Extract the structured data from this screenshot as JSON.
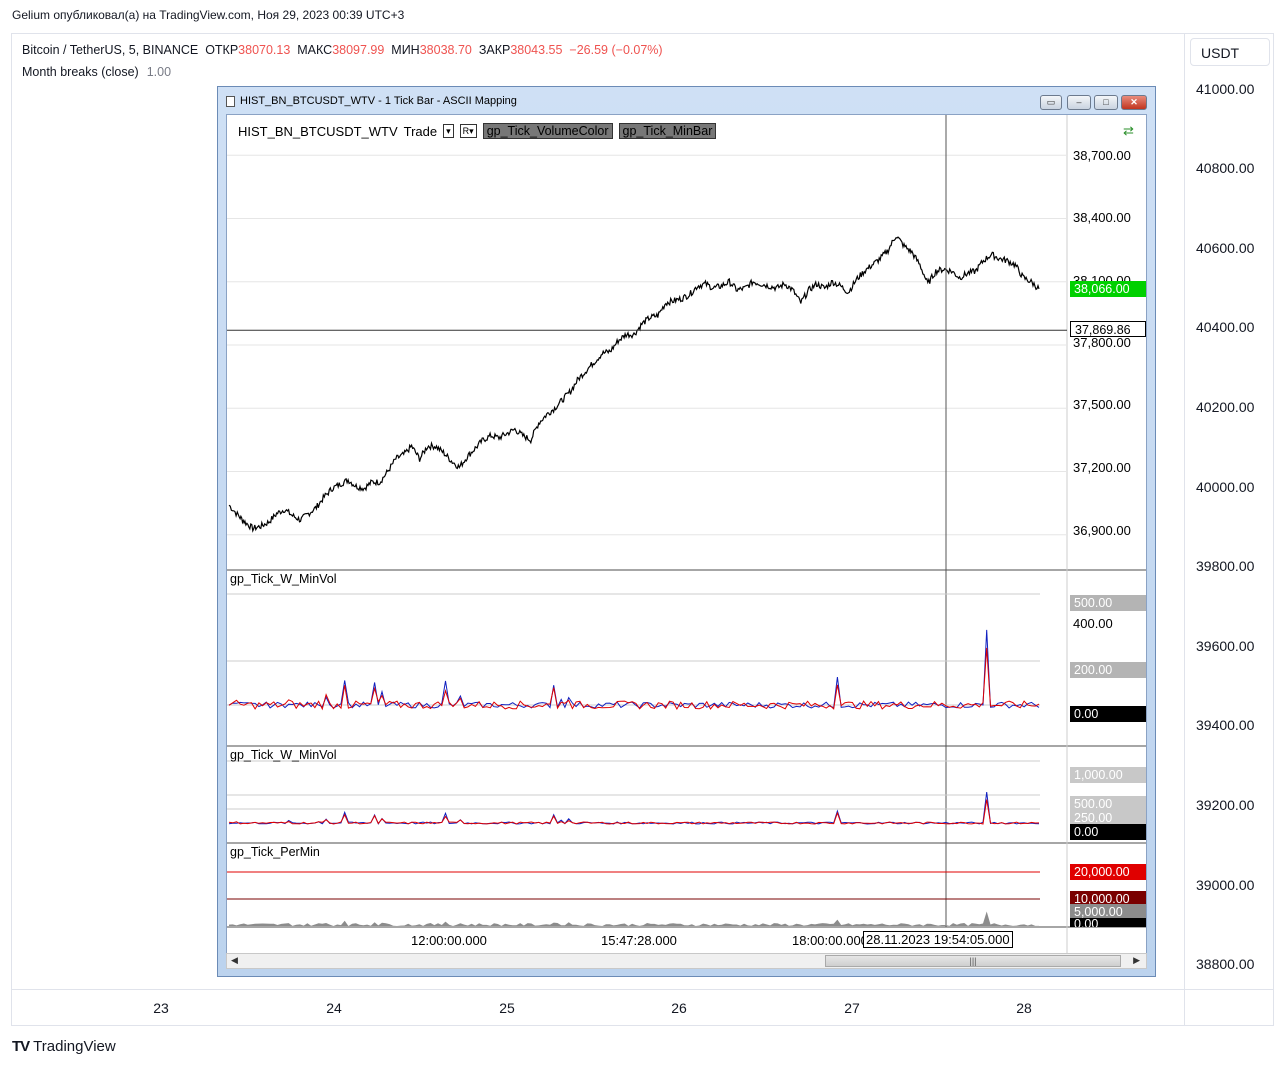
{
  "publication": {
    "line": "Gelium опубликовал(а) на TradingView.com, Ноя 29, 2023 00:39 UTC+3"
  },
  "legend": {
    "symbol": "Bitcoin / TetherUS, 5, BINANCE",
    "open_label": "ОТКР",
    "open": "38070.13",
    "high_label": "МАКС",
    "high": "38097.99",
    "low_label": "МИН",
    "low": "38038.70",
    "close_label": "ЗАКР",
    "close": "38043.55",
    "change": "−26.59 (−0.07%)",
    "indicator_name": "Month breaks (close)",
    "indicator_value": "1.00"
  },
  "currency": "USDT",
  "branding": "TradingView",
  "colors": {
    "accent_red": "#ef5350",
    "win_green": "#00d000",
    "win_red": "#e00000",
    "win_dark_red": "#7a0000",
    "win_grey": "#b4b4b4"
  },
  "chart_data": [
    {
      "type": "line",
      "title": "Bitcoin / TetherUS, 5, BINANCE",
      "y_axis": {
        "ticks": [
          "41000.00",
          "40800.00",
          "40600.00",
          "40400.00",
          "40200.00",
          "40000.00",
          "39800.00",
          "39600.00",
          "39400.00",
          "39200.00",
          "39000.00",
          "38800.00"
        ],
        "ylim": [
          38800,
          41000
        ]
      },
      "x_axis": {
        "ticks": [
          "23",
          "24",
          "25",
          "26",
          "27",
          "28"
        ]
      },
      "series": []
    },
    {
      "type": "line",
      "title": "HIST_BN_BTCUSDT_WTV - 1 Tick Bar - ASCII Mapping",
      "header": {
        "symbol": "HIST_BN_BTCUSDT_WTV",
        "mode": "Trade",
        "dropdown": "▾",
        "range": "R▾",
        "tags": [
          "gp_Tick_VolumeColor",
          "gp_Tick_MinBar"
        ]
      },
      "price_pane": {
        "y_ticks": [
          "38,700.00",
          "38,400.00",
          "38,100.00",
          "37,800.00",
          "37,500.00",
          "37,200.00",
          "36,900.00"
        ],
        "ylim": [
          36780,
          38820
        ],
        "last_price": "38,066.00",
        "crosshair_price": "37,869.86",
        "close_series": [
          [
            0,
            37040
          ],
          [
            6,
            36990
          ],
          [
            10,
            36960
          ],
          [
            15,
            36930
          ],
          [
            20,
            36940
          ],
          [
            25,
            36960
          ],
          [
            30,
            37000
          ],
          [
            35,
            37020
          ],
          [
            40,
            36990
          ],
          [
            45,
            36970
          ],
          [
            50,
            37000
          ],
          [
            55,
            37030
          ],
          [
            60,
            37080
          ],
          [
            65,
            37120
          ],
          [
            70,
            37140
          ],
          [
            75,
            37160
          ],
          [
            80,
            37130
          ],
          [
            85,
            37120
          ],
          [
            90,
            37150
          ],
          [
            95,
            37150
          ],
          [
            100,
            37200
          ],
          [
            105,
            37260
          ],
          [
            110,
            37280
          ],
          [
            115,
            37320
          ],
          [
            120,
            37260
          ],
          [
            125,
            37320
          ],
          [
            130,
            37320
          ],
          [
            135,
            37290
          ],
          [
            140,
            37250
          ],
          [
            145,
            37220
          ],
          [
            150,
            37270
          ],
          [
            155,
            37310
          ],
          [
            160,
            37350
          ],
          [
            165,
            37370
          ],
          [
            170,
            37360
          ],
          [
            175,
            37380
          ],
          [
            180,
            37400
          ],
          [
            185,
            37370
          ],
          [
            190,
            37350
          ],
          [
            195,
            37430
          ],
          [
            200,
            37470
          ],
          [
            205,
            37500
          ],
          [
            210,
            37540
          ],
          [
            215,
            37580
          ],
          [
            220,
            37640
          ],
          [
            225,
            37680
          ],
          [
            230,
            37720
          ],
          [
            235,
            37760
          ],
          [
            240,
            37770
          ],
          [
            245,
            37820
          ],
          [
            250,
            37850
          ],
          [
            255,
            37850
          ],
          [
            260,
            37900
          ],
          [
            265,
            37930
          ],
          [
            270,
            37940
          ],
          [
            275,
            38000
          ],
          [
            280,
            38010
          ],
          [
            285,
            38020
          ],
          [
            290,
            38040
          ],
          [
            295,
            38080
          ],
          [
            300,
            38090
          ],
          [
            305,
            38070
          ],
          [
            310,
            38080
          ],
          [
            315,
            38100
          ],
          [
            320,
            38060
          ],
          [
            325,
            38070
          ],
          [
            330,
            38100
          ],
          [
            335,
            38090
          ],
          [
            340,
            38080
          ],
          [
            345,
            38070
          ],
          [
            350,
            38090
          ],
          [
            355,
            38060
          ],
          [
            360,
            38000
          ],
          [
            365,
            38060
          ],
          [
            370,
            38090
          ],
          [
            375,
            38070
          ],
          [
            380,
            38100
          ],
          [
            385,
            38080
          ],
          [
            390,
            38050
          ],
          [
            395,
            38110
          ],
          [
            400,
            38150
          ],
          [
            405,
            38180
          ],
          [
            410,
            38210
          ],
          [
            415,
            38250
          ],
          [
            420,
            38320
          ],
          [
            425,
            38270
          ],
          [
            430,
            38240
          ],
          [
            435,
            38180
          ],
          [
            440,
            38090
          ],
          [
            445,
            38150
          ],
          [
            450,
            38160
          ],
          [
            455,
            38150
          ],
          [
            460,
            38120
          ],
          [
            465,
            38140
          ],
          [
            470,
            38150
          ],
          [
            475,
            38200
          ],
          [
            480,
            38230
          ],
          [
            485,
            38210
          ],
          [
            490,
            38200
          ],
          [
            495,
            38180
          ],
          [
            500,
            38120
          ],
          [
            505,
            38100
          ],
          [
            510,
            38066
          ]
        ],
        "line_color": "#000000"
      },
      "pane2": {
        "label": "gp_Tick_W_MinVol",
        "y_ticks": [
          "500.00",
          "400.00",
          "200.00",
          "0.00"
        ]
      },
      "pane3": {
        "label": "gp_Tick_W_MinVol",
        "y_ticks": [
          "1,000.00",
          "500.00",
          "250.00",
          "0.00"
        ]
      },
      "pane4": {
        "label": "gp_Tick_PerMin",
        "y_ticks": [
          "20,000.00",
          "10,000.00",
          "5,000.00",
          "0.00"
        ]
      },
      "x_axis": {
        "ticks": [
          "12:00:00.000",
          "15:47:28.000",
          "18:00:00.000"
        ],
        "crosshair_time": "28.11.2023 19:54:05.000"
      },
      "series": [
        {
          "values": [
            0,
            0,
            5,
            0,
            0,
            0,
            0,
            0,
            0,
            0,
            0,
            0,
            0,
            0,
            0,
            0,
            15,
            0,
            0,
            0,
            0,
            0,
            0,
            0,
            10,
            0,
            40,
            0,
            0,
            0,
            0,
            110,
            0,
            0,
            0,
            0,
            0,
            0,
            0,
            80,
            0,
            45,
            0,
            0,
            0,
            0,
            0,
            0,
            0,
            0,
            0,
            0,
            0,
            0,
            0,
            0,
            0,
            0,
            90,
            0,
            0,
            0,
            30,
            0,
            0,
            0,
            0,
            0,
            0,
            0,
            0,
            0,
            0,
            0,
            0,
            0,
            0,
            0,
            0,
            0,
            0,
            0,
            0,
            0,
            0,
            0,
            0,
            80,
            0,
            20,
            0,
            40,
            0,
            0,
            0,
            0,
            0,
            0,
            0,
            0,
            0,
            0,
            0,
            0,
            0,
            0,
            0,
            0,
            0,
            0,
            0,
            0,
            0,
            0,
            0,
            0,
            0,
            0,
            0,
            0,
            0,
            0,
            0,
            0,
            0,
            0,
            0,
            0,
            0,
            0,
            0,
            0,
            0,
            0,
            0,
            0,
            0,
            0,
            0,
            0,
            0,
            0,
            0,
            0,
            0,
            0,
            0,
            0,
            0,
            0,
            0,
            0,
            0,
            0,
            0,
            0,
            0,
            0,
            0,
            0,
            0,
            0,
            0,
            120,
            0,
            0,
            0,
            0,
            0,
            0,
            0,
            0,
            0,
            0,
            0,
            0,
            0,
            0,
            0,
            0,
            0,
            0,
            0,
            0,
            0,
            0,
            0,
            0,
            0,
            0,
            0,
            0,
            0,
            0,
            0,
            0,
            0,
            0,
            0,
            0,
            0,
            0,
            0,
            300,
            0,
            0,
            0,
            0,
            0,
            0,
            0,
            0,
            0,
            0,
            0,
            0,
            0,
            0
          ]
        }
      ]
    }
  ]
}
